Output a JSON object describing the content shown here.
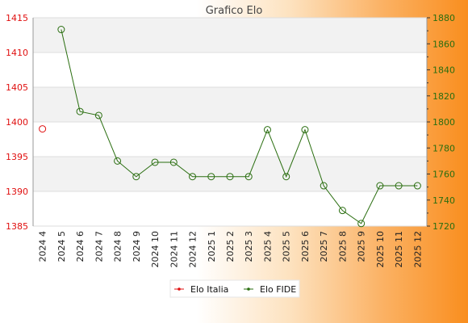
{
  "chart_data": {
    "type": "line",
    "title": "Grafico Elo",
    "categories": [
      "2024 4",
      "2024 5",
      "2024 6",
      "2024 7",
      "2024 8",
      "2024 9",
      "2024 10",
      "2024 11",
      "2024 12",
      "2025 1",
      "2025 2",
      "2025 3",
      "2025 4",
      "2025 5",
      "2025 6",
      "2025 7",
      "2025 8",
      "2025 9",
      "2025 10",
      "2025 11",
      "2025 12"
    ],
    "y_left": {
      "ticks": [
        1385,
        1390,
        1395,
        1400,
        1405,
        1410,
        1415
      ],
      "range": [
        1385,
        1415
      ],
      "color": "#e01010"
    },
    "y_right": {
      "ticks": [
        1720,
        1740,
        1760,
        1780,
        1800,
        1820,
        1840,
        1860,
        1880
      ],
      "range": [
        1720,
        1880
      ],
      "color": "#2a6e10"
    },
    "grid": true,
    "legend_position": "bottom-center",
    "series": [
      {
        "name": "Elo Italia",
        "axis": "left",
        "color": "#e01010",
        "values": [
          1399,
          null,
          null,
          null,
          null,
          null,
          null,
          null,
          null,
          null,
          null,
          null,
          null,
          null,
          null,
          null,
          null,
          null,
          null,
          null,
          null
        ]
      },
      {
        "name": "Elo FIDE",
        "axis": "right",
        "color": "#2a6e10",
        "values": [
          null,
          1871,
          1808,
          1805,
          1770,
          1758,
          1769,
          1769,
          1758,
          1758,
          1758,
          1758,
          1794,
          1758,
          1794,
          1751,
          1732,
          1722,
          1751,
          1751,
          1751
        ]
      }
    ]
  }
}
